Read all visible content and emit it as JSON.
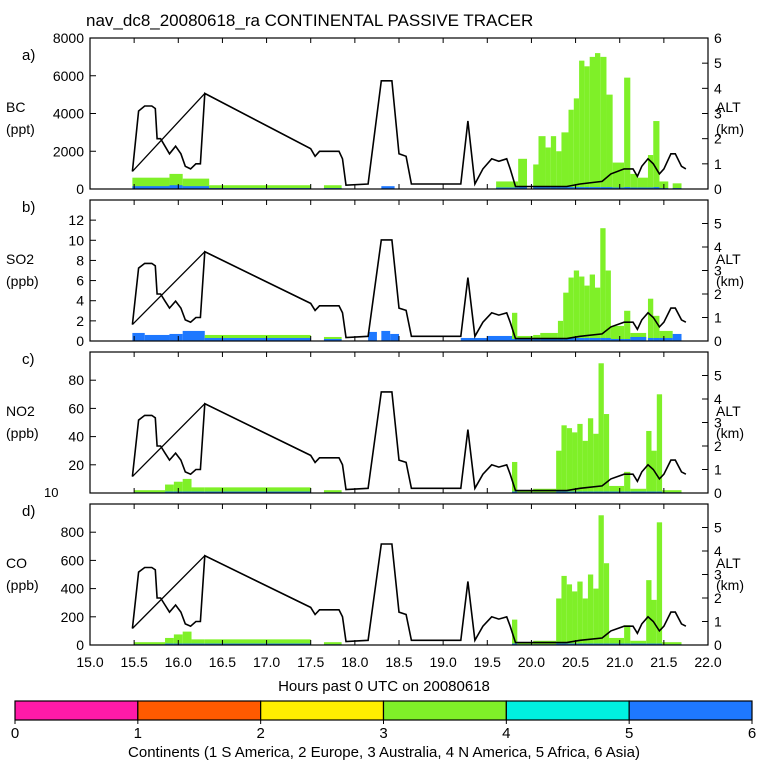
{
  "title": "nav_dc8_20080618_ra CONTINENTAL PASSIVE TRACER",
  "colors": {
    "1": "#ff1aa8",
    "2": "#ff5a00",
    "3": "#ffee00",
    "4": "#7ff028",
    "5": "#00f0e0",
    "6": "#1e78ff",
    "altitude": "#000000"
  },
  "xaxis": {
    "label": "Hours past 0 UTC on 20080618",
    "range": [
      15.0,
      22.0
    ],
    "ticks": [
      "15.0",
      "15.5",
      "16.0",
      "16.5",
      "17.0",
      "17.5",
      "18.0",
      "18.5",
      "19.0",
      "19.5",
      "20.0",
      "20.5",
      "21.0",
      "21.5",
      "22.0"
    ]
  },
  "legend": {
    "label": "Continents (1 S America, 2 Europe, 3 Australia, 4 N America, 5 Africa, 6 Asia)",
    "ticks": [
      "0",
      "1",
      "2",
      "3",
      "4",
      "5",
      "6"
    ]
  },
  "altitude_axis": {
    "label_line1": "ALT",
    "label_line2": "(km)",
    "range": [
      0,
      6
    ]
  },
  "chart_data": [
    {
      "type": "area",
      "panel": "a)",
      "ylabel_line1": "BC",
      "ylabel_line2": "(ppt)",
      "ylim": [
        0,
        8000
      ],
      "yticks": [
        "0",
        "2000",
        "4000",
        "6000",
        "8000"
      ],
      "right_ticks": [
        "0",
        "1",
        "2",
        "3",
        "4",
        "5",
        "6"
      ],
      "tracer_segments": [
        {
          "t0": 15.48,
          "t1": 15.9,
          "v": 600,
          "color": "4",
          "under": 150
        },
        {
          "t0": 15.9,
          "t1": 16.05,
          "v": 800,
          "color": "4",
          "under": 200
        },
        {
          "t0": 16.05,
          "t1": 16.35,
          "v": 550,
          "color": "4",
          "under": 150
        },
        {
          "t0": 16.35,
          "t1": 17.5,
          "v": 200,
          "color": "4",
          "under": 50
        },
        {
          "t0": 17.65,
          "t1": 17.85,
          "v": 200,
          "color": "4",
          "under": 50
        },
        {
          "t0": 18.3,
          "t1": 18.45,
          "v": 150,
          "color": "6",
          "under": 0
        },
        {
          "t0": 19.6,
          "t1": 19.85,
          "v": 400,
          "color": "4",
          "under": 80
        },
        {
          "t0": 19.85,
          "t1": 19.95,
          "v": 1600,
          "color": "4",
          "under": 100
        },
        {
          "t0": 20.02,
          "t1": 20.08,
          "v": 1300,
          "color": "4",
          "under": 100
        },
        {
          "t0": 20.08,
          "t1": 20.16,
          "v": 2800,
          "color": "4",
          "under": 100
        },
        {
          "t0": 20.16,
          "t1": 20.22,
          "v": 2200,
          "color": "4",
          "under": 100
        },
        {
          "t0": 20.22,
          "t1": 20.28,
          "v": 2800,
          "color": "4",
          "under": 100
        },
        {
          "t0": 20.28,
          "t1": 20.34,
          "v": 2000,
          "color": "4",
          "under": 100
        },
        {
          "t0": 20.34,
          "t1": 20.42,
          "v": 3000,
          "color": "4",
          "under": 100
        },
        {
          "t0": 20.42,
          "t1": 20.48,
          "v": 4200,
          "color": "4",
          "under": 100
        },
        {
          "t0": 20.48,
          "t1": 20.54,
          "v": 4800,
          "color": "4",
          "under": 100
        },
        {
          "t0": 20.54,
          "t1": 20.6,
          "v": 6800,
          "color": "4",
          "under": 100
        },
        {
          "t0": 20.6,
          "t1": 20.66,
          "v": 6500,
          "color": "4",
          "under": 100
        },
        {
          "t0": 20.66,
          "t1": 20.72,
          "v": 7000,
          "color": "4",
          "under": 100
        },
        {
          "t0": 20.72,
          "t1": 20.78,
          "v": 7200,
          "color": "4",
          "under": 100
        },
        {
          "t0": 20.78,
          "t1": 20.85,
          "v": 7000,
          "color": "4",
          "under": 100
        },
        {
          "t0": 20.85,
          "t1": 20.92,
          "v": 5000,
          "color": "4",
          "under": 100
        },
        {
          "t0": 20.92,
          "t1": 21.05,
          "v": 1400,
          "color": "4",
          "under": 80
        },
        {
          "t0": 21.05,
          "t1": 21.12,
          "v": 5900,
          "color": "4",
          "under": 100
        },
        {
          "t0": 21.12,
          "t1": 21.2,
          "v": 800,
          "color": "4",
          "under": 80
        },
        {
          "t0": 21.2,
          "t1": 21.32,
          "v": 600,
          "color": "4",
          "under": 80
        },
        {
          "t0": 21.32,
          "t1": 21.38,
          "v": 1800,
          "color": "4",
          "under": 80
        },
        {
          "t0": 21.38,
          "t1": 21.45,
          "v": 3600,
          "color": "4",
          "under": 100
        },
        {
          "t0": 21.45,
          "t1": 21.55,
          "v": 400,
          "color": "4",
          "under": 50
        },
        {
          "t0": 21.6,
          "t1": 21.7,
          "v": 300,
          "color": "4",
          "under": 50
        }
      ]
    },
    {
      "type": "area",
      "panel": "b)",
      "ylabel_line1": "SO2",
      "ylabel_line2": "(ppb)",
      "ylim": [
        0,
        14
      ],
      "yticks": [
        "0",
        "2",
        "4",
        "6",
        "8",
        "10",
        "12"
      ],
      "right_ticks": [
        "0",
        "1",
        "2",
        "3",
        "4",
        "5"
      ],
      "tracer_segments": [
        {
          "t0": 15.48,
          "t1": 15.62,
          "v": 0.8,
          "color": "6",
          "under": 0.3
        },
        {
          "t0": 15.62,
          "t1": 15.9,
          "v": 0.6,
          "color": "6",
          "under": 0.3
        },
        {
          "t0": 15.9,
          "t1": 16.05,
          "v": 0.7,
          "color": "6",
          "under": 0.4
        },
        {
          "t0": 16.05,
          "t1": 16.3,
          "v": 1.0,
          "color": "6",
          "under": 0.5
        },
        {
          "t0": 16.3,
          "t1": 17.5,
          "v": 0.6,
          "color": "4",
          "under": 0.3
        },
        {
          "t0": 17.65,
          "t1": 17.85,
          "v": 0.4,
          "color": "4",
          "under": 0.2
        },
        {
          "t0": 18.15,
          "t1": 18.25,
          "v": 0.9,
          "color": "6",
          "under": 0
        },
        {
          "t0": 18.3,
          "t1": 18.4,
          "v": 1.0,
          "color": "6",
          "under": 0
        },
        {
          "t0": 18.4,
          "t1": 18.5,
          "v": 0.7,
          "color": "6",
          "under": 0
        },
        {
          "t0": 19.2,
          "t1": 19.5,
          "v": 0.3,
          "color": "6",
          "under": 0
        },
        {
          "t0": 19.5,
          "t1": 19.78,
          "v": 0.5,
          "color": "6",
          "under": 0.1
        },
        {
          "t0": 19.78,
          "t1": 19.84,
          "v": 2.8,
          "color": "4",
          "under": 0.2
        },
        {
          "t0": 19.84,
          "t1": 20.02,
          "v": 0.5,
          "color": "4",
          "under": 0.2
        },
        {
          "t0": 20.02,
          "t1": 20.1,
          "v": 0.6,
          "color": "4",
          "under": 0.3
        },
        {
          "t0": 20.1,
          "t1": 20.3,
          "v": 0.8,
          "color": "4",
          "under": 0.3
        },
        {
          "t0": 20.3,
          "t1": 20.36,
          "v": 2.0,
          "color": "4",
          "under": 0.3
        },
        {
          "t0": 20.36,
          "t1": 20.42,
          "v": 4.8,
          "color": "4",
          "under": 0.3
        },
        {
          "t0": 20.42,
          "t1": 20.48,
          "v": 6.3,
          "color": "4",
          "under": 0.3
        },
        {
          "t0": 20.48,
          "t1": 20.54,
          "v": 7.0,
          "color": "4",
          "under": 0.3
        },
        {
          "t0": 20.54,
          "t1": 20.6,
          "v": 6.4,
          "color": "4",
          "under": 0.3
        },
        {
          "t0": 20.6,
          "t1": 20.66,
          "v": 5.5,
          "color": "4",
          "under": 0.3
        },
        {
          "t0": 20.66,
          "t1": 20.72,
          "v": 6.6,
          "color": "4",
          "under": 0.3
        },
        {
          "t0": 20.72,
          "t1": 20.78,
          "v": 5.3,
          "color": "4",
          "under": 0.3
        },
        {
          "t0": 20.78,
          "t1": 20.84,
          "v": 11.2,
          "color": "4",
          "under": 0.3
        },
        {
          "t0": 20.84,
          "t1": 20.9,
          "v": 7.0,
          "color": "4",
          "under": 0.3
        },
        {
          "t0": 20.9,
          "t1": 21.05,
          "v": 1.5,
          "color": "4",
          "under": 0.2
        },
        {
          "t0": 21.05,
          "t1": 21.12,
          "v": 3.0,
          "color": "4",
          "under": 0.2
        },
        {
          "t0": 21.12,
          "t1": 21.3,
          "v": 0.8,
          "color": "4",
          "under": 0.4
        },
        {
          "t0": 21.32,
          "t1": 21.38,
          "v": 4.2,
          "color": "4",
          "under": 0.3
        },
        {
          "t0": 21.38,
          "t1": 21.45,
          "v": 2.5,
          "color": "4",
          "under": 0.3
        },
        {
          "t0": 21.45,
          "t1": 21.6,
          "v": 1.0,
          "color": "4",
          "under": 0.3
        },
        {
          "t0": 21.6,
          "t1": 21.7,
          "v": 0.7,
          "color": "6",
          "under": 0
        }
      ]
    },
    {
      "type": "area",
      "panel": "c)",
      "ylabel_line1": "NO2",
      "ylabel_line2": "(ppb)",
      "ylim": [
        0,
        100
      ],
      "yticks": [
        "20",
        "40",
        "60",
        "80"
      ],
      "corner_label": "10",
      "right_ticks": [
        "0",
        "1",
        "2",
        "3",
        "4",
        "5"
      ],
      "tracer_segments": [
        {
          "t0": 15.5,
          "t1": 15.85,
          "v": 2,
          "color": "4",
          "under": 0.5
        },
        {
          "t0": 15.85,
          "t1": 15.95,
          "v": 6,
          "color": "4",
          "under": 1
        },
        {
          "t0": 15.95,
          "t1": 16.05,
          "v": 8,
          "color": "4",
          "under": 1
        },
        {
          "t0": 16.05,
          "t1": 16.15,
          "v": 10,
          "color": "4",
          "under": 1
        },
        {
          "t0": 16.15,
          "t1": 16.3,
          "v": 4,
          "color": "4",
          "under": 1
        },
        {
          "t0": 16.3,
          "t1": 17.5,
          "v": 4,
          "color": "4",
          "under": 1
        },
        {
          "t0": 17.65,
          "t1": 17.85,
          "v": 2,
          "color": "4",
          "under": 0.5
        },
        {
          "t0": 19.78,
          "t1": 19.84,
          "v": 22,
          "color": "4",
          "under": 1
        },
        {
          "t0": 19.84,
          "t1": 20.02,
          "v": 2,
          "color": "4",
          "under": 0.5
        },
        {
          "t0": 20.02,
          "t1": 20.28,
          "v": 3,
          "color": "4",
          "under": 0.5
        },
        {
          "t0": 20.28,
          "t1": 20.34,
          "v": 30,
          "color": "4",
          "under": 1
        },
        {
          "t0": 20.34,
          "t1": 20.4,
          "v": 48,
          "color": "4",
          "under": 1
        },
        {
          "t0": 20.4,
          "t1": 20.46,
          "v": 46,
          "color": "4",
          "under": 1
        },
        {
          "t0": 20.46,
          "t1": 20.52,
          "v": 43,
          "color": "4",
          "under": 1
        },
        {
          "t0": 20.52,
          "t1": 20.58,
          "v": 49,
          "color": "4",
          "under": 1
        },
        {
          "t0": 20.58,
          "t1": 20.64,
          "v": 37,
          "color": "4",
          "under": 1
        },
        {
          "t0": 20.64,
          "t1": 20.7,
          "v": 53,
          "color": "4",
          "under": 1
        },
        {
          "t0": 20.7,
          "t1": 20.76,
          "v": 42,
          "color": "4",
          "under": 1
        },
        {
          "t0": 20.76,
          "t1": 20.82,
          "v": 92,
          "color": "4",
          "under": 1
        },
        {
          "t0": 20.82,
          "t1": 20.88,
          "v": 56,
          "color": "4",
          "under": 1
        },
        {
          "t0": 20.88,
          "t1": 21.05,
          "v": 5,
          "color": "4",
          "under": 1
        },
        {
          "t0": 21.05,
          "t1": 21.12,
          "v": 15,
          "color": "4",
          "under": 1
        },
        {
          "t0": 21.12,
          "t1": 21.3,
          "v": 3,
          "color": "4",
          "under": 1
        },
        {
          "t0": 21.3,
          "t1": 21.36,
          "v": 44,
          "color": "4",
          "under": 1
        },
        {
          "t0": 21.36,
          "t1": 21.42,
          "v": 30,
          "color": "4",
          "under": 1
        },
        {
          "t0": 21.42,
          "t1": 21.48,
          "v": 70,
          "color": "4",
          "under": 1
        },
        {
          "t0": 21.48,
          "t1": 21.7,
          "v": 2,
          "color": "4",
          "under": 0.5
        }
      ]
    },
    {
      "type": "area",
      "panel": "d)",
      "ylabel_line1": "CO",
      "ylabel_line2": "(ppb)",
      "ylim": [
        0,
        1000
      ],
      "yticks": [
        "0",
        "200",
        "400",
        "600",
        "800"
      ],
      "right_ticks": [
        "0",
        "1",
        "2",
        "3",
        "4",
        "5"
      ],
      "tracer_segments": [
        {
          "t0": 15.5,
          "t1": 15.85,
          "v": 20,
          "color": "4",
          "under": 5
        },
        {
          "t0": 15.85,
          "t1": 15.95,
          "v": 50,
          "color": "4",
          "under": 10
        },
        {
          "t0": 15.95,
          "t1": 16.05,
          "v": 75,
          "color": "4",
          "under": 10
        },
        {
          "t0": 16.05,
          "t1": 16.15,
          "v": 95,
          "color": "4",
          "under": 10
        },
        {
          "t0": 16.15,
          "t1": 16.3,
          "v": 40,
          "color": "4",
          "under": 10
        },
        {
          "t0": 16.3,
          "t1": 17.5,
          "v": 40,
          "color": "4",
          "under": 10
        },
        {
          "t0": 17.65,
          "t1": 17.85,
          "v": 20,
          "color": "4",
          "under": 5
        },
        {
          "t0": 19.78,
          "t1": 19.84,
          "v": 180,
          "color": "4",
          "under": 10
        },
        {
          "t0": 19.84,
          "t1": 20.02,
          "v": 20,
          "color": "4",
          "under": 5
        },
        {
          "t0": 20.02,
          "t1": 20.28,
          "v": 30,
          "color": "4",
          "under": 5
        },
        {
          "t0": 20.28,
          "t1": 20.34,
          "v": 330,
          "color": "4",
          "under": 10
        },
        {
          "t0": 20.34,
          "t1": 20.4,
          "v": 490,
          "color": "4",
          "under": 10
        },
        {
          "t0": 20.4,
          "t1": 20.46,
          "v": 430,
          "color": "4",
          "under": 10
        },
        {
          "t0": 20.46,
          "t1": 20.52,
          "v": 380,
          "color": "4",
          "under": 10
        },
        {
          "t0": 20.52,
          "t1": 20.58,
          "v": 450,
          "color": "4",
          "under": 10
        },
        {
          "t0": 20.58,
          "t1": 20.64,
          "v": 330,
          "color": "4",
          "under": 10
        },
        {
          "t0": 20.64,
          "t1": 20.7,
          "v": 500,
          "color": "4",
          "under": 10
        },
        {
          "t0": 20.7,
          "t1": 20.76,
          "v": 400,
          "color": "4",
          "under": 10
        },
        {
          "t0": 20.76,
          "t1": 20.82,
          "v": 920,
          "color": "4",
          "under": 10
        },
        {
          "t0": 20.82,
          "t1": 20.88,
          "v": 580,
          "color": "4",
          "under": 10
        },
        {
          "t0": 20.88,
          "t1": 21.05,
          "v": 50,
          "color": "4",
          "under": 10
        },
        {
          "t0": 21.05,
          "t1": 21.12,
          "v": 140,
          "color": "4",
          "under": 10
        },
        {
          "t0": 21.12,
          "t1": 21.3,
          "v": 30,
          "color": "4",
          "under": 10
        },
        {
          "t0": 21.3,
          "t1": 21.36,
          "v": 460,
          "color": "4",
          "under": 10
        },
        {
          "t0": 21.36,
          "t1": 21.42,
          "v": 320,
          "color": "4",
          "under": 10
        },
        {
          "t0": 21.42,
          "t1": 21.48,
          "v": 870,
          "color": "4",
          "under": 10
        },
        {
          "t0": 21.48,
          "t1": 21.7,
          "v": 20,
          "color": "4",
          "under": 5
        }
      ]
    }
  ],
  "altitude_km": [
    [
      15.48,
      0.7
    ],
    [
      15.55,
      3.1
    ],
    [
      15.62,
      3.3
    ],
    [
      15.7,
      3.3
    ],
    [
      15.74,
      3.2
    ],
    [
      15.76,
      2.0
    ],
    [
      15.8,
      2.0
    ],
    [
      15.85,
      1.7
    ],
    [
      15.9,
      1.4
    ],
    [
      15.97,
      1.7
    ],
    [
      16.03,
      1.4
    ],
    [
      16.08,
      0.9
    ],
    [
      16.14,
      0.8
    ],
    [
      16.2,
      1.0
    ],
    [
      16.25,
      1.0
    ],
    [
      16.3,
      3.8
    ],
    [
      17.5,
      1.6
    ],
    [
      17.55,
      1.3
    ],
    [
      17.6,
      1.5
    ],
    [
      17.82,
      1.5
    ],
    [
      17.86,
      1.2
    ],
    [
      17.9,
      0.15
    ],
    [
      18.15,
      0.2
    ],
    [
      18.3,
      4.3
    ],
    [
      18.42,
      4.3
    ],
    [
      18.5,
      1.4
    ],
    [
      18.58,
      1.3
    ],
    [
      18.64,
      0.2
    ],
    [
      19.2,
      0.2
    ],
    [
      19.28,
      2.7
    ],
    [
      19.36,
      0.2
    ],
    [
      19.45,
      0.8
    ],
    [
      19.55,
      1.2
    ],
    [
      19.63,
      1.1
    ],
    [
      19.72,
      1.2
    ],
    [
      19.76,
      0.8
    ],
    [
      19.82,
      0.1
    ],
    [
      20.4,
      0.1
    ],
    [
      20.55,
      0.2
    ],
    [
      20.8,
      0.3
    ],
    [
      20.9,
      0.6
    ],
    [
      21.05,
      0.8
    ],
    [
      21.15,
      0.8
    ],
    [
      21.2,
      0.5
    ],
    [
      21.25,
      0.9
    ],
    [
      21.32,
      1.2
    ],
    [
      21.38,
      1.0
    ],
    [
      21.45,
      0.6
    ],
    [
      21.5,
      0.8
    ],
    [
      21.58,
      1.4
    ],
    [
      21.63,
      1.4
    ],
    [
      21.7,
      0.9
    ],
    [
      21.75,
      0.8
    ]
  ],
  "altitude_ramp": [
    [
      15.48,
      0.7
    ],
    [
      16.3,
      3.8
    ],
    [
      17.5,
      1.6
    ]
  ]
}
